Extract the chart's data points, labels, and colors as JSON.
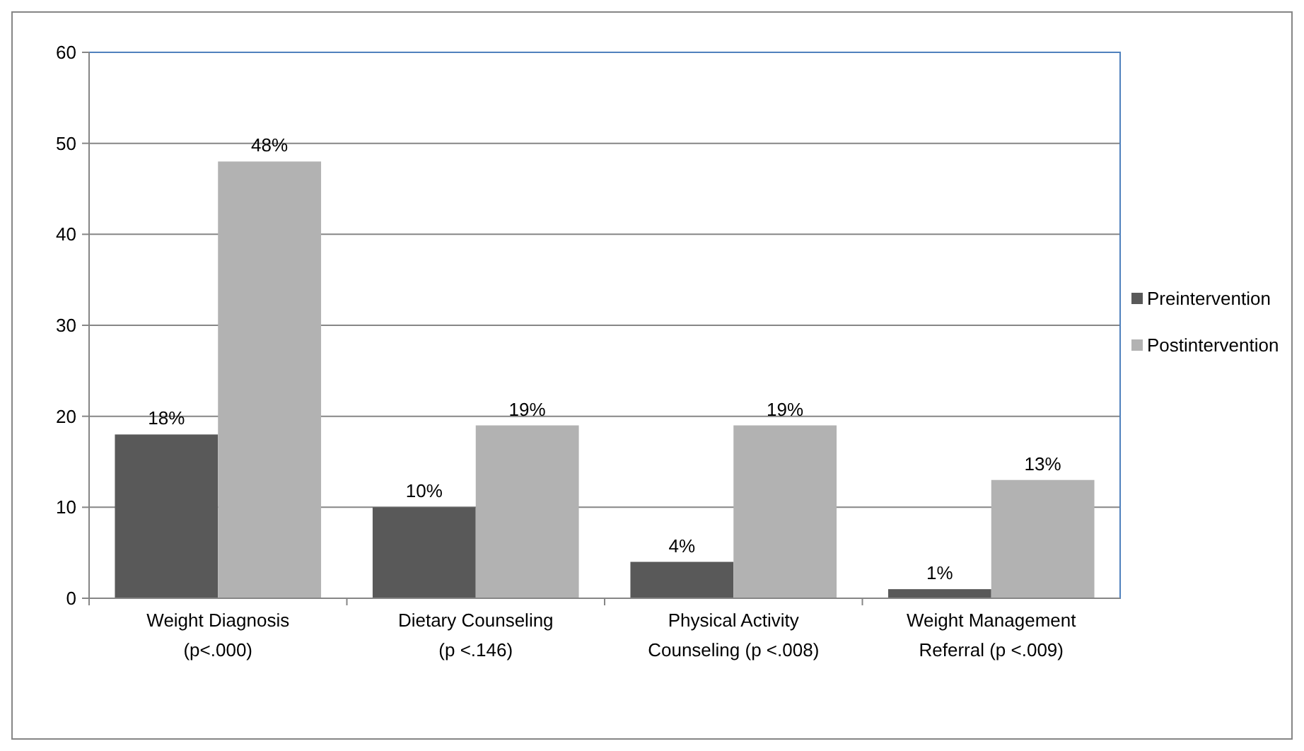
{
  "chart_data": {
    "type": "bar",
    "categories": [
      "Weight Diagnosis (p<.000)",
      "Dietary Counseling (p <.146)",
      "Physical Activity Counseling (p <.008)",
      "Weight Management Referral (p <.009)"
    ],
    "series": [
      {
        "name": "Preintervention",
        "color": "#595959",
        "values": [
          18,
          10,
          4,
          1
        ],
        "value_labels": [
          "18%",
          "10%",
          "4%",
          "1%"
        ]
      },
      {
        "name": "Postintervention",
        "color": "#b2b2b2",
        "values": [
          48,
          19,
          19,
          13
        ],
        "value_labels": [
          "48%",
          "19%",
          "19%",
          "13%"
        ]
      }
    ],
    "ylim": [
      0,
      60
    ],
    "yticks": [
      0,
      10,
      20,
      30,
      40,
      50,
      60
    ],
    "grid": "y",
    "legend": "right"
  }
}
